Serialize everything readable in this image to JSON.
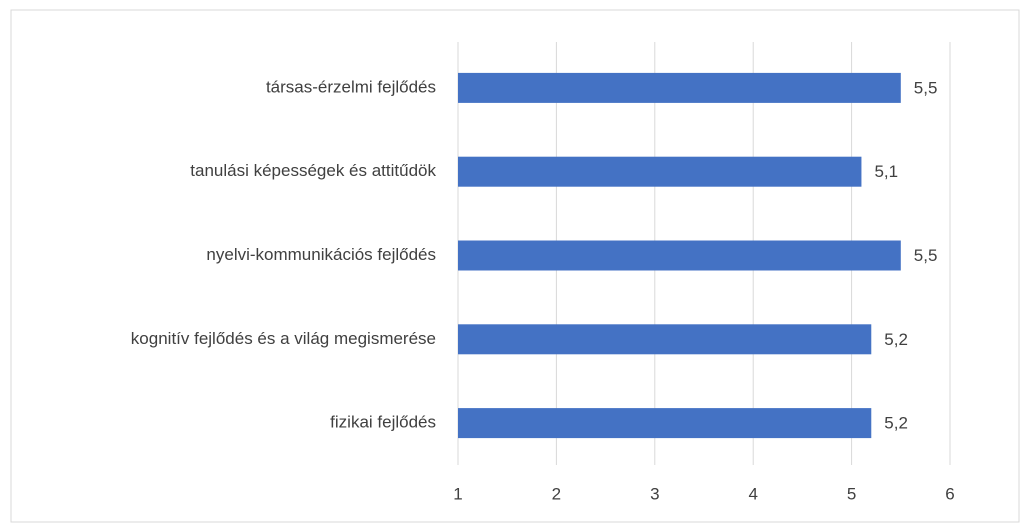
{
  "chart_data": {
    "type": "barh",
    "categories": [
      "társas-érzelmi fejlődés",
      "tanulási képességek és attitűdök",
      "nyelvi-kommunikációs fejlődés",
      "kognitív fejlődés és a világ megismerése",
      "fizikai fejlődés"
    ],
    "values": [
      5.5,
      5.1,
      5.5,
      5.2,
      5.2
    ],
    "value_labels": [
      "5,5",
      "5,1",
      "5,5",
      "5,2",
      "5,2"
    ],
    "color": "#4472c4",
    "xlim": [
      1,
      6
    ],
    "xticks": [
      1,
      2,
      3,
      4,
      5,
      6
    ],
    "grid": true
  }
}
